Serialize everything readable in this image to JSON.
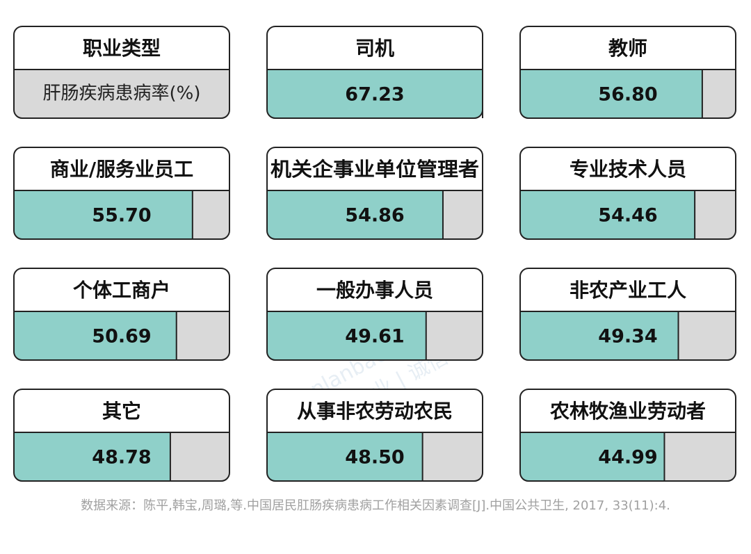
{
  "chart_data": {
    "type": "bar",
    "key_title": "职业类型",
    "key_value": "肝肠疾病患病率(%)",
    "categories": [
      "司机",
      "教师",
      "商业/服务业员工",
      "机关企事业单位管理者",
      "专业技术人员",
      "个体工商户",
      "一般办事人员",
      "非农产业工人",
      "其它",
      "从事非农劳动农民",
      "农林牧渔业劳动者"
    ],
    "values": [
      67.23,
      56.8,
      55.7,
      54.86,
      54.46,
      50.69,
      49.61,
      49.34,
      48.78,
      48.5,
      44.99
    ],
    "value_labels": [
      "67.23",
      "56.80",
      "55.70",
      "54.86",
      "54.46",
      "50.69",
      "49.61",
      "49.34",
      "48.78",
      "48.50",
      "44.99"
    ],
    "color": "#8fd0c9",
    "xlim": [
      0,
      67.23
    ],
    "source": "数据来源：陈平,韩宝,周璐,等.中国居民肛肠疾病患病工作相关因素调查[J].中国公共卫生, 2017, 33(11):4.",
    "watermark": [
      "shenlanbao.com",
      "中立 | 专业 | 诚信"
    ]
  }
}
